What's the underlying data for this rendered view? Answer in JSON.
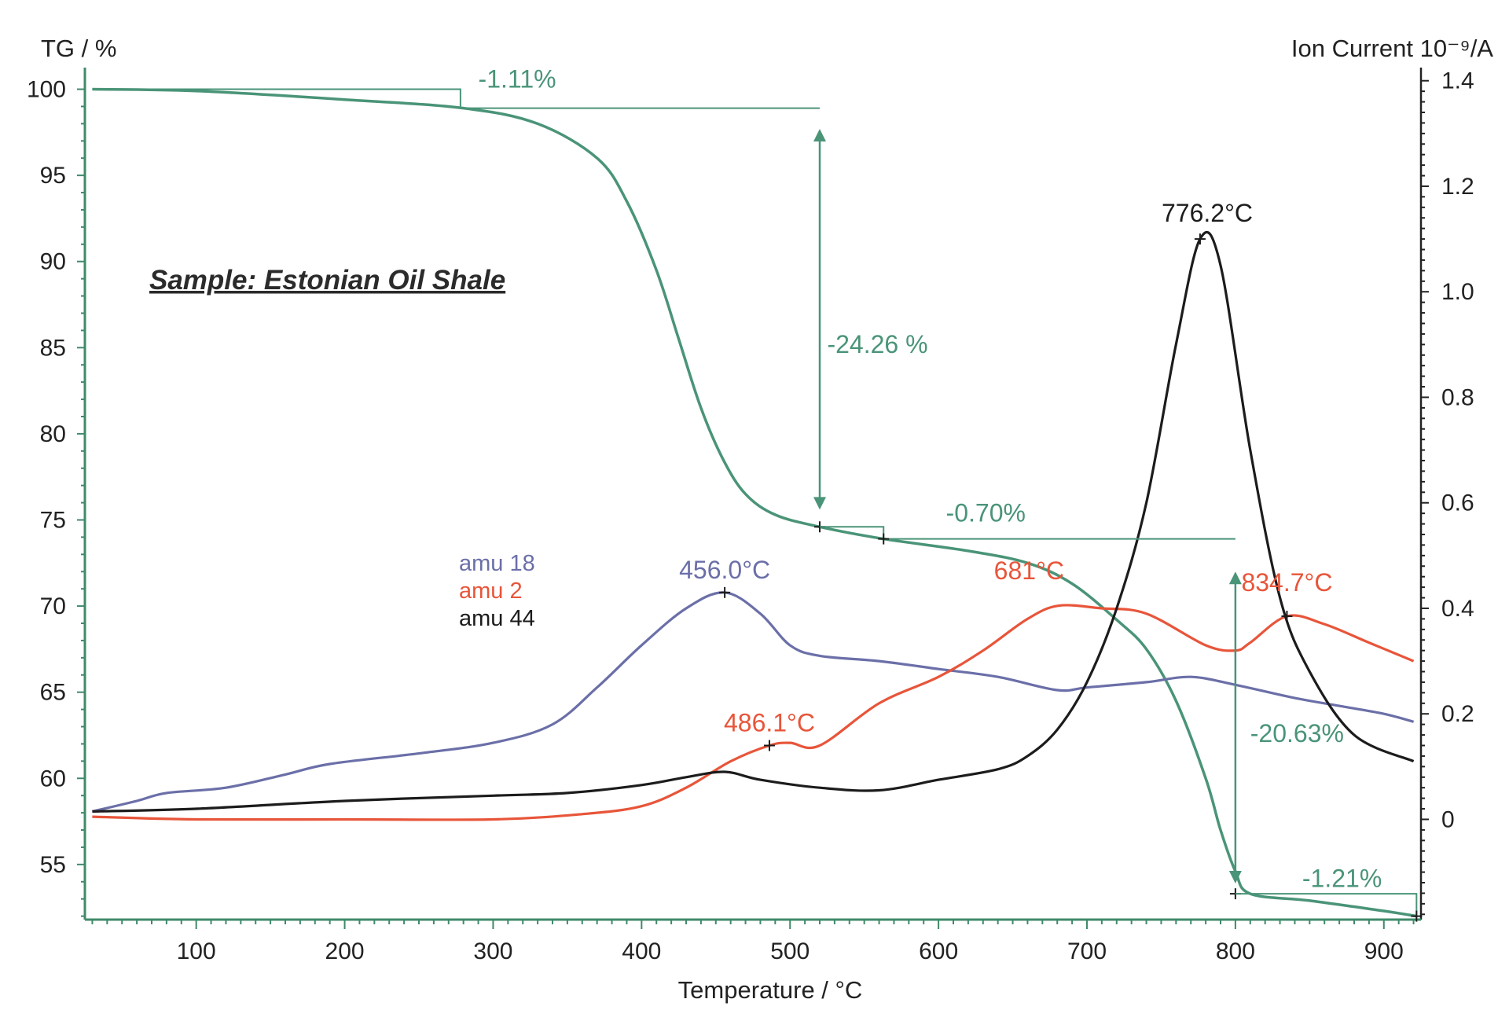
{
  "colors": {
    "tg": "#4a9478",
    "amu18": "#6b6fa8",
    "amu2": "#e8553a",
    "amu44": "#1c1c1c",
    "axis": "#3f8a6a",
    "right_axis": "#222222"
  },
  "sample_label": "Sample: Estonian Oil Shale",
  "chart_data": {
    "type": "line",
    "xlabel": "Temperature / °C",
    "ylabel": "TG  / %",
    "y2label": "Ion Current 10⁻⁹/A",
    "xlim": [
      25,
      925
    ],
    "ylim": [
      51.8,
      100.8
    ],
    "y2lim": [
      -0.19,
      1.41
    ],
    "x_ticks": [
      100,
      200,
      300,
      400,
      500,
      600,
      700,
      800,
      900
    ],
    "y_ticks": [
      55,
      60,
      65,
      70,
      75,
      80,
      85,
      90,
      95,
      100
    ],
    "y2_ticks": [
      0,
      0.2,
      0.4,
      0.6,
      0.8,
      1.0,
      1.2,
      1.4
    ],
    "y2_tick_labels": [
      "0",
      "0.2",
      "0.4",
      "0.6",
      "0.8",
      "1.0",
      "1.2",
      "1.4"
    ],
    "legend": [
      "amu 18",
      "amu 2",
      "amu 44"
    ],
    "series": [
      {
        "name": "TG",
        "axis": "left",
        "x": [
          30,
          100,
          200,
          280,
          330,
          370,
          390,
          410,
          425,
          440,
          455,
          470,
          490,
          520,
          563,
          620,
          660,
          690,
          720,
          740,
          760,
          780,
          790,
          800,
          810,
          850,
          900,
          922
        ],
        "y": [
          100,
          99.9,
          99.4,
          98.9,
          98.0,
          96.0,
          93.5,
          89.5,
          85.5,
          81.5,
          78.5,
          76.5,
          75.3,
          74.6,
          73.9,
          73.2,
          72.5,
          71.3,
          69.2,
          67.5,
          64.5,
          60.0,
          57.0,
          54.6,
          53.3,
          52.9,
          52.3,
          52.0
        ]
      },
      {
        "name": "amu 18",
        "axis": "right",
        "x": [
          30,
          60,
          80,
          120,
          160,
          190,
          250,
          300,
          340,
          370,
          400,
          430,
          456,
          480,
          500,
          520,
          560,
          600,
          640,
          680,
          700,
          740,
          770,
          800,
          840,
          870,
          900,
          920
        ],
        "y": [
          0.015,
          0.035,
          0.05,
          0.06,
          0.085,
          0.105,
          0.125,
          0.145,
          0.18,
          0.25,
          0.33,
          0.4,
          0.43,
          0.39,
          0.33,
          0.31,
          0.3,
          0.285,
          0.27,
          0.245,
          0.25,
          0.26,
          0.27,
          0.255,
          0.23,
          0.215,
          0.2,
          0.185
        ]
      },
      {
        "name": "amu 2",
        "axis": "right",
        "x": [
          30,
          100,
          200,
          300,
          360,
          400,
          430,
          460,
          486.1,
          500,
          520,
          560,
          600,
          630,
          660,
          681,
          710,
          740,
          780,
          800,
          810,
          834.7,
          860,
          890,
          920
        ],
        "y": [
          0.005,
          0.0,
          0.0,
          0.0,
          0.01,
          0.025,
          0.06,
          0.11,
          0.14,
          0.145,
          0.14,
          0.22,
          0.27,
          0.32,
          0.38,
          0.405,
          0.4,
          0.39,
          0.33,
          0.32,
          0.335,
          0.385,
          0.37,
          0.335,
          0.3
        ]
      },
      {
        "name": "amu 44",
        "axis": "right",
        "x": [
          30,
          100,
          200,
          300,
          350,
          400,
          430,
          456,
          480,
          520,
          560,
          600,
          640,
          660,
          680,
          700,
          720,
          740,
          760,
          776.2,
          790,
          810,
          830,
          850,
          880,
          920
        ],
        "y": [
          0.015,
          0.02,
          0.035,
          0.045,
          0.05,
          0.065,
          0.08,
          0.09,
          0.075,
          0.06,
          0.055,
          0.075,
          0.095,
          0.12,
          0.17,
          0.26,
          0.4,
          0.6,
          0.9,
          1.1,
          1.05,
          0.7,
          0.42,
          0.28,
          0.16,
          0.11
        ]
      }
    ],
    "annotations": [
      {
        "text": "-1.11%",
        "series": "TG"
      },
      {
        "text": "-24.26 %",
        "series": "TG"
      },
      {
        "text": "-0.70%",
        "series": "TG"
      },
      {
        "text": "-20.63%",
        "series": "TG"
      },
      {
        "text": "-1.21%",
        "series": "TG"
      },
      {
        "text": "456.0°C",
        "series": "amu 18",
        "x": 456.0
      },
      {
        "text": "486.1°C",
        "series": "amu 2",
        "x": 486.1
      },
      {
        "text": "681°C",
        "series": "amu 2",
        "x": 681
      },
      {
        "text": "834.7°C",
        "series": "amu 2",
        "x": 834.7
      },
      {
        "text": "776.2°C",
        "series": "amu 44",
        "x": 776.2
      }
    ]
  }
}
